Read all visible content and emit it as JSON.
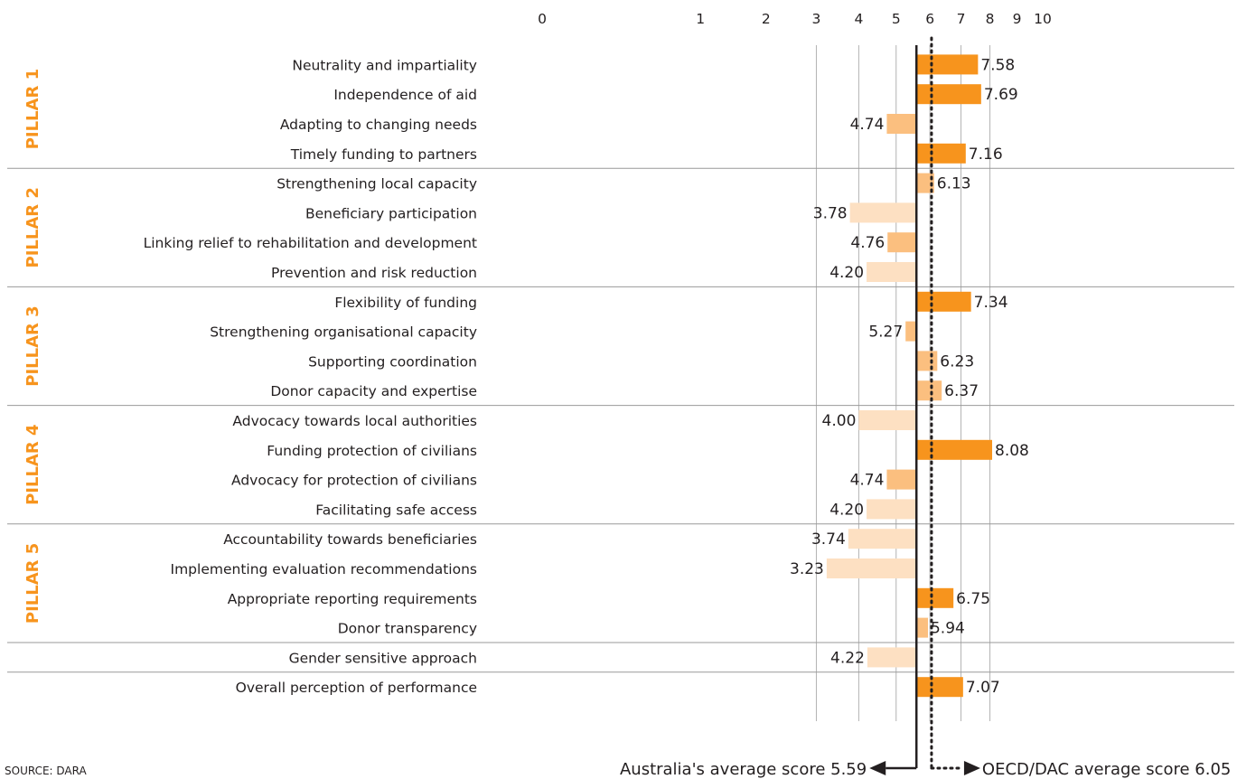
{
  "chart_data": {
    "type": "bar",
    "orientation": "horizontal",
    "x_ticks": [
      0,
      1,
      2,
      3,
      4,
      5,
      6,
      7,
      8,
      9,
      10
    ],
    "pillars": [
      "PILLAR 1",
      "PILLAR 2",
      "PILLAR 3",
      "PILLAR 4",
      "PILLAR 5"
    ],
    "rows": [
      {
        "label": "Neutrality and impartiality",
        "value": 7.58,
        "display": "7.58",
        "pillar": 1
      },
      {
        "label": "Independence of aid",
        "value": 7.69,
        "display": "7.69",
        "pillar": 1
      },
      {
        "label": "Adapting to changing needs",
        "value": 4.74,
        "display": "4.74",
        "pillar": 1
      },
      {
        "label": "Timely funding to partners",
        "value": 7.16,
        "display": "7.16",
        "pillar": 1
      },
      {
        "label": "Strengthening local capacity",
        "value": 6.13,
        "display": "6.13",
        "pillar": 2
      },
      {
        "label": "Beneficiary participation",
        "value": 3.78,
        "display": "3.78",
        "pillar": 2
      },
      {
        "label": "Linking relief to rehabilitation and development",
        "value": 4.76,
        "display": "4.76",
        "pillar": 2
      },
      {
        "label": "Prevention and risk reduction",
        "value": 4.2,
        "display": "4.20",
        "pillar": 2
      },
      {
        "label": "Flexibility of funding",
        "value": 7.34,
        "display": "7.34",
        "pillar": 3
      },
      {
        "label": "Strengthening organisational capacity",
        "value": 5.27,
        "display": "5.27",
        "pillar": 3
      },
      {
        "label": "Supporting coordination",
        "value": 6.23,
        "display": "6.23",
        "pillar": 3
      },
      {
        "label": "Donor capacity and expertise",
        "value": 6.37,
        "display": "6.37",
        "pillar": 3
      },
      {
        "label": "Advocacy towards local authorities",
        "value": 4.0,
        "display": "4.00",
        "pillar": 4
      },
      {
        "label": "Funding protection of civilians",
        "value": 8.08,
        "display": "8.08",
        "pillar": 4
      },
      {
        "label": "Advocacy for protection of civilians",
        "value": 4.74,
        "display": "4.74",
        "pillar": 4
      },
      {
        "label": "Facilitating safe access",
        "value": 4.2,
        "display": "4.20",
        "pillar": 4
      },
      {
        "label": "Accountability towards beneficiaries",
        "value": 3.74,
        "display": "3.74",
        "pillar": 5
      },
      {
        "label": "Implementing evaluation recommendations",
        "value": 3.23,
        "display": "3.23",
        "pillar": 5
      },
      {
        "label": "Appropriate reporting requirements",
        "value": 6.75,
        "display": "6.75",
        "pillar": 5
      },
      {
        "label": "Donor transparency",
        "value": 5.94,
        "display": "5.94",
        "pillar": 5
      },
      {
        "label": "Gender sensitive approach",
        "value": 4.22,
        "display": "4.22",
        "pillar": null
      },
      {
        "label": "Overall perception of performance",
        "value": 7.07,
        "display": "7.07",
        "pillar": null
      }
    ],
    "reference_lines": {
      "country_average": {
        "label": "Australia's average score 5.59",
        "value": 5.59
      },
      "group_average": {
        "label": "OECD/DAC average score 6.05",
        "value": 6.05
      }
    },
    "colors": {
      "above_average": "#f7941d",
      "below_mid": "#fbbf7f",
      "below_far": "#fde0c2",
      "pillar_text": "#f7941d",
      "grid": "#b3b3b3"
    }
  },
  "source": "SOURCE: DARA"
}
